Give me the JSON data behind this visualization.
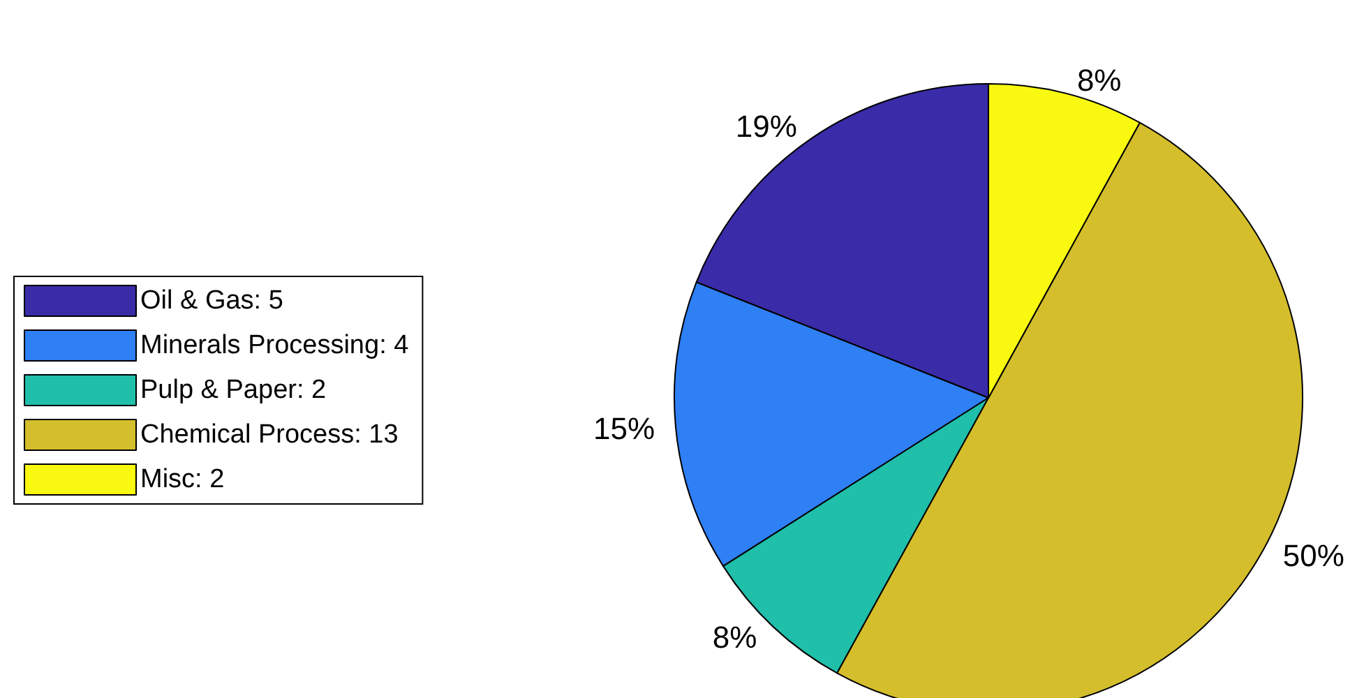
{
  "chart_data": {
    "type": "pie",
    "categories": [
      "Oil & Gas: 5",
      "Minerals Processing: 4",
      "Pulp & Paper: 2",
      "Chemical Process: 13",
      "Misc: 2"
    ],
    "values": [
      19,
      15,
      8,
      50,
      8
    ],
    "value_labels": [
      "19%",
      "15%",
      "8%",
      "50%",
      "8%"
    ],
    "colors": [
      "#3a2ba8",
      "#2f7ff5",
      "#1fbfaa",
      "#d4be2b",
      "#f8f810"
    ],
    "legend": "left"
  }
}
